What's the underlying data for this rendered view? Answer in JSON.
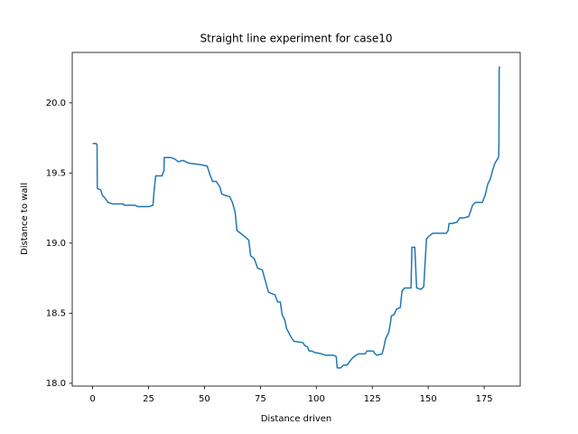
{
  "chart_data": {
    "type": "line",
    "title": "Straight line experiment for case10",
    "xlabel": "Distance driven",
    "ylabel": "Distance to wall",
    "xlim": [
      -9.1,
      191.1
    ],
    "ylim": [
      17.98,
      20.36
    ],
    "xticks": [
      0,
      25,
      50,
      75,
      100,
      125,
      150,
      175
    ],
    "yticks": [
      {
        "value": 18,
        "label": "18.0"
      },
      18.5,
      {
        "value": 19,
        "label": "19.0"
      },
      19.5,
      {
        "value": 20,
        "label": "20.0"
      }
    ],
    "grid": false,
    "x": [
      0,
      1.6,
      2.0,
      2.1,
      3.6,
      4.4,
      5.6,
      6.9,
      8.9,
      13.7,
      14.1,
      19.0,
      20.2,
      23.8,
      25.0,
      27.0,
      27.4,
      28.2,
      31.0,
      31.9,
      32.0,
      35.1,
      36.7,
      38.3,
      40.3,
      43.1,
      48.0,
      51.2,
      52.4,
      53.6,
      55.2,
      56.9,
      57.7,
      59.3,
      61.3,
      62.5,
      63.7,
      64.5,
      66.1,
      68.5,
      69.8,
      70.6,
      72.2,
      73.8,
      75.8,
      77.4,
      78.6,
      81.5,
      82.7,
      83.9,
      84.7,
      85.9,
      86.7,
      88.7,
      89.9,
      94.0,
      94.8,
      96.0,
      96.8,
      98.0,
      99.2,
      102.4,
      104.0,
      107.7,
      108.9,
      109.3,
      110.9,
      112.1,
      113.7,
      116.1,
      117.7,
      119.0,
      121.8,
      122.6,
      125.4,
      126.2,
      127.0,
      129.4,
      130.2,
      131.0,
      132.3,
      133.1,
      133.5,
      134.7,
      135.9,
      137.5,
      138.3,
      139.5,
      142.3,
      142.7,
      144.0,
      144.8,
      146.8,
      148.0,
      149.2,
      150.4,
      152.0,
      158.1,
      158.9,
      159.3,
      160.9,
      162.9,
      164.1,
      166.1,
      168.1,
      169.0,
      169.8,
      171.0,
      172.6,
      174.2,
      175.4,
      176.6,
      177.8,
      178.6,
      179.8,
      181.0,
      181.5,
      181.6,
      181.7,
      181.9
    ],
    "series": [
      {
        "color": "#1f77b4",
        "values": [
          19.71,
          19.71,
          19.7,
          19.39,
          19.38,
          19.34,
          19.32,
          19.29,
          19.28,
          19.28,
          19.27,
          19.27,
          19.26,
          19.26,
          19.26,
          19.27,
          19.36,
          19.48,
          19.48,
          19.52,
          19.61,
          19.61,
          19.6,
          19.58,
          19.59,
          19.57,
          19.56,
          19.55,
          19.49,
          19.44,
          19.44,
          19.4,
          19.35,
          19.34,
          19.33,
          19.29,
          19.22,
          19.09,
          19.07,
          19.04,
          19.02,
          18.91,
          18.89,
          18.82,
          18.81,
          18.72,
          18.65,
          18.63,
          18.58,
          18.58,
          18.49,
          18.45,
          18.39,
          18.33,
          18.3,
          18.29,
          18.27,
          18.26,
          18.23,
          18.23,
          18.22,
          18.21,
          18.2,
          18.2,
          18.19,
          18.11,
          18.11,
          18.13,
          18.13,
          18.18,
          18.2,
          18.21,
          18.21,
          18.23,
          18.23,
          18.21,
          18.2,
          18.21,
          18.26,
          18.32,
          18.36,
          18.43,
          18.48,
          18.49,
          18.53,
          18.54,
          18.66,
          18.68,
          18.68,
          18.97,
          18.97,
          18.68,
          18.67,
          18.69,
          19.03,
          19.05,
          19.07,
          19.07,
          19.09,
          19.14,
          19.14,
          19.15,
          19.18,
          19.18,
          19.19,
          19.23,
          19.27,
          19.29,
          19.29,
          19.29,
          19.34,
          19.42,
          19.46,
          19.51,
          19.57,
          19.6,
          19.62,
          19.73,
          20.24,
          20.26
        ]
      }
    ]
  }
}
